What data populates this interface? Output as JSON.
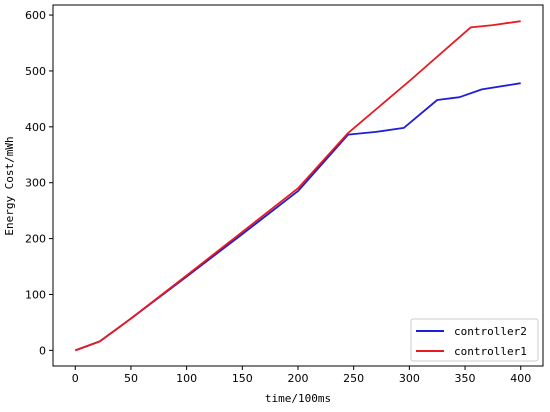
{
  "chart_data": {
    "type": "line",
    "title": "",
    "xlabel": "time/100ms",
    "ylabel": "Energy Cost/mWh",
    "xlim": [
      -20,
      420
    ],
    "ylim": [
      -28,
      618
    ],
    "xticks": [
      0,
      50,
      100,
      150,
      200,
      250,
      300,
      350,
      400
    ],
    "yticks": [
      0,
      100,
      200,
      300,
      400,
      500,
      600
    ],
    "grid": false,
    "legend": "lower-right",
    "series": [
      {
        "name": "controller2",
        "color": "#1f1fd6",
        "points": [
          [
            0,
            0
          ],
          [
            22,
            16
          ],
          [
            50,
            57
          ],
          [
            100,
            132
          ],
          [
            150,
            208
          ],
          [
            200,
            285
          ],
          [
            245,
            386
          ],
          [
            270,
            391
          ],
          [
            295,
            398
          ],
          [
            325,
            448
          ],
          [
            345,
            453
          ],
          [
            365,
            467
          ],
          [
            400,
            478
          ]
        ]
      },
      {
        "name": "controller1",
        "color": "#e8191f",
        "points": [
          [
            0,
            0
          ],
          [
            22,
            16
          ],
          [
            50,
            57
          ],
          [
            100,
            134
          ],
          [
            150,
            212
          ],
          [
            200,
            290
          ],
          [
            245,
            389
          ],
          [
            300,
            482
          ],
          [
            355,
            578
          ],
          [
            375,
            582
          ],
          [
            400,
            589
          ]
        ]
      }
    ]
  }
}
